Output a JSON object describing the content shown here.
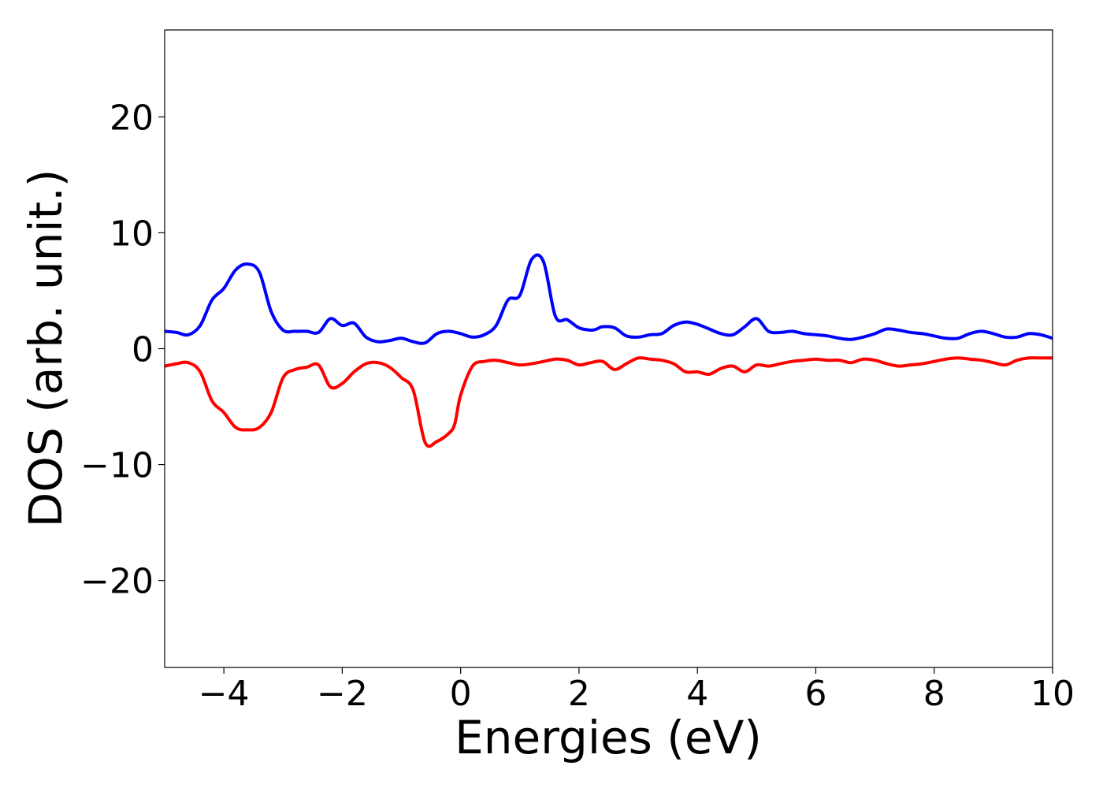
{
  "chart_data": {
    "type": "line",
    "title": "",
    "xlabel": "Energies (eV)",
    "ylabel": "DOS (arb. unit.)",
    "xlim": [
      -5,
      10
    ],
    "ylim": [
      -27.5,
      27.5
    ],
    "xticks": [
      -4,
      -2,
      0,
      2,
      4,
      6,
      8,
      10
    ],
    "xtick_labels": [
      "−4",
      "−2",
      "0",
      "2",
      "4",
      "6",
      "8",
      "10"
    ],
    "yticks": [
      -20,
      -10,
      0,
      10,
      20
    ],
    "ytick_labels": [
      "−20",
      "−10",
      "0",
      "10",
      "20"
    ],
    "grid": false,
    "legend": false,
    "series": [
      {
        "color": "#0000ff",
        "x": [
          -5,
          -4.8,
          -4.6,
          -4.4,
          -4.2,
          -4.0,
          -3.8,
          -3.6,
          -3.4,
          -3.2,
          -3.0,
          -2.8,
          -2.6,
          -2.4,
          -2.2,
          -2.0,
          -1.8,
          -1.6,
          -1.4,
          -1.2,
          -1.0,
          -0.8,
          -0.6,
          -0.4,
          -0.2,
          0.0,
          0.2,
          0.4,
          0.6,
          0.8,
          1.0,
          1.2,
          1.4,
          1.6,
          1.8,
          2.0,
          2.2,
          2.3,
          2.4,
          2.6,
          2.8,
          3.0,
          3.2,
          3.4,
          3.6,
          3.8,
          4.0,
          4.2,
          4.4,
          4.6,
          4.8,
          5.0,
          5.2,
          5.4,
          5.6,
          5.8,
          6.0,
          6.2,
          6.4,
          6.6,
          6.8,
          7.0,
          7.2,
          7.4,
          7.6,
          7.8,
          8.0,
          8.2,
          8.4,
          8.6,
          8.8,
          9.0,
          9.2,
          9.4,
          9.6,
          9.8,
          10.0
        ],
        "y": [
          1.5,
          1.4,
          1.2,
          2.0,
          4.2,
          5.2,
          6.8,
          7.3,
          6.6,
          3.2,
          1.6,
          1.5,
          1.5,
          1.4,
          2.6,
          2.0,
          2.2,
          1.0,
          0.6,
          0.7,
          0.9,
          0.6,
          0.5,
          1.3,
          1.5,
          1.3,
          1.0,
          1.2,
          2.0,
          4.2,
          4.6,
          7.7,
          7.5,
          2.8,
          2.5,
          1.8,
          1.6,
          1.7,
          1.9,
          1.8,
          1.1,
          1.0,
          1.2,
          1.3,
          2.0,
          2.3,
          2.1,
          1.7,
          1.3,
          1.2,
          1.9,
          2.6,
          1.5,
          1.4,
          1.5,
          1.3,
          1.2,
          1.1,
          0.9,
          0.8,
          1.0,
          1.3,
          1.7,
          1.6,
          1.4,
          1.3,
          1.1,
          0.9,
          0.9,
          1.3,
          1.5,
          1.3,
          1.0,
          1.0,
          1.3,
          1.2,
          0.9
        ]
      },
      {
        "color": "#ff0000",
        "x": [
          -5,
          -4.8,
          -4.6,
          -4.4,
          -4.2,
          -4.0,
          -3.8,
          -3.6,
          -3.4,
          -3.2,
          -3.0,
          -2.8,
          -2.6,
          -2.4,
          -2.2,
          -2.0,
          -1.8,
          -1.6,
          -1.4,
          -1.2,
          -1.0,
          -0.8,
          -0.6,
          -0.4,
          -0.2,
          -0.1,
          0.0,
          0.2,
          0.4,
          0.6,
          0.8,
          1.0,
          1.2,
          1.4,
          1.6,
          1.8,
          2.0,
          2.2,
          2.4,
          2.6,
          2.8,
          3.0,
          3.2,
          3.4,
          3.6,
          3.8,
          4.0,
          4.2,
          4.4,
          4.6,
          4.8,
          5.0,
          5.2,
          5.4,
          5.6,
          5.8,
          6.0,
          6.2,
          6.4,
          6.6,
          6.8,
          7.0,
          7.2,
          7.4,
          7.6,
          7.8,
          8.0,
          8.2,
          8.4,
          8.6,
          8.8,
          9.0,
          9.2,
          9.4,
          9.6,
          9.8,
          10.0
        ],
        "y": [
          -1.5,
          -1.3,
          -1.2,
          -2.0,
          -4.5,
          -5.5,
          -6.8,
          -7.0,
          -6.8,
          -5.5,
          -2.5,
          -1.8,
          -1.6,
          -1.4,
          -3.3,
          -3.0,
          -2.0,
          -1.3,
          -1.2,
          -1.6,
          -2.5,
          -3.6,
          -8.1,
          -8.0,
          -7.3,
          -6.5,
          -4.0,
          -1.5,
          -1.1,
          -1.0,
          -1.2,
          -1.4,
          -1.3,
          -1.1,
          -0.9,
          -1.0,
          -1.4,
          -1.2,
          -1.1,
          -1.8,
          -1.3,
          -0.8,
          -0.9,
          -1.0,
          -1.3,
          -2.0,
          -2.0,
          -2.2,
          -1.7,
          -1.5,
          -2.0,
          -1.4,
          -1.5,
          -1.3,
          -1.1,
          -1.0,
          -0.9,
          -1.0,
          -1.0,
          -1.2,
          -0.9,
          -1.0,
          -1.3,
          -1.5,
          -1.4,
          -1.3,
          -1.1,
          -0.9,
          -0.8,
          -0.9,
          -1.0,
          -1.2,
          -1.4,
          -1.0,
          -0.8,
          -0.8,
          -0.8
        ]
      }
    ]
  }
}
